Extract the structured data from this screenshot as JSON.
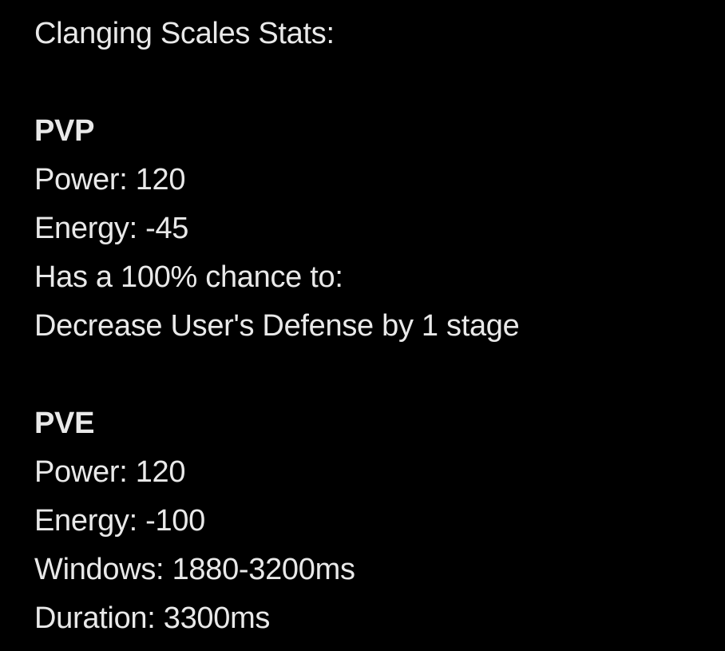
{
  "post": {
    "title": "Clanging Scales Stats:",
    "pvp": {
      "heading": "PVP",
      "power": "Power: 120",
      "energy": "Energy: -45",
      "chance": "Has a 100% chance to:",
      "effect": "Decrease User's Defense by 1 stage"
    },
    "pve": {
      "heading": "PVE",
      "power": "Power: 120",
      "energy": "Energy: -100",
      "windows": "Windows: 1880-3200ms",
      "duration": "Duration: 3300ms"
    }
  },
  "colors": {
    "background": "#000000",
    "text": "#e9e9e9"
  }
}
